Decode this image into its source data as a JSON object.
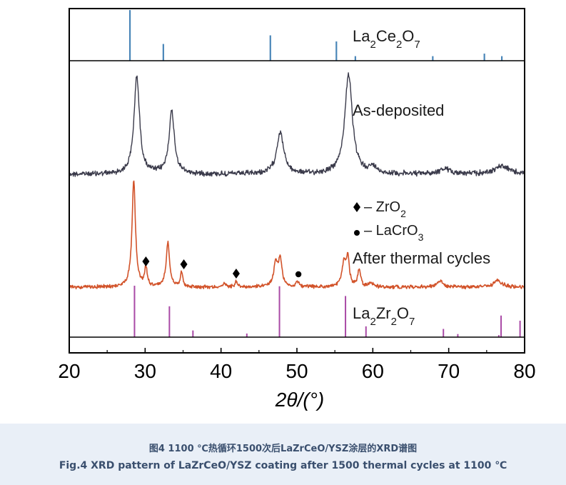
{
  "chart_data": {
    "type": "line",
    "x_range": [
      20,
      80
    ],
    "x_ticks": [
      "20",
      "30",
      "40",
      "50",
      "60",
      "70",
      "80"
    ],
    "xlabel": "2θ/(°)",
    "series": [
      {
        "name": "As-deposited",
        "color": "#3a3a4a",
        "peaks": [
          {
            "x": 28.9,
            "y": 0.98,
            "w": 0.55
          },
          {
            "x": 33.5,
            "y": 0.62,
            "w": 0.55
          },
          {
            "x": 47.8,
            "y": 0.42,
            "w": 0.7
          },
          {
            "x": 56.8,
            "y": 1.0,
            "w": 0.75
          },
          {
            "x": 60.0,
            "y": 0.06,
            "w": 0.8
          },
          {
            "x": 69.5,
            "y": 0.05,
            "w": 1.2
          },
          {
            "x": 77.0,
            "y": 0.08,
            "w": 1.5
          }
        ]
      },
      {
        "name": "After thermal cycles",
        "color": "#d2532a",
        "peaks": [
          {
            "x": 28.5,
            "y": 1.0,
            "w": 0.35
          },
          {
            "x": 30.1,
            "y": 0.18,
            "w": 0.25
          },
          {
            "x": 33.0,
            "y": 0.42,
            "w": 0.35
          },
          {
            "x": 34.8,
            "y": 0.13,
            "w": 0.25
          },
          {
            "x": 40.5,
            "y": 0.03,
            "w": 0.3
          },
          {
            "x": 42.0,
            "y": 0.05,
            "w": 0.3
          },
          {
            "x": 47.2,
            "y": 0.22,
            "w": 0.4
          },
          {
            "x": 47.8,
            "y": 0.25,
            "w": 0.35
          },
          {
            "x": 50.1,
            "y": 0.05,
            "w": 0.3
          },
          {
            "x": 56.2,
            "y": 0.22,
            "w": 0.4
          },
          {
            "x": 56.7,
            "y": 0.26,
            "w": 0.3
          },
          {
            "x": 58.2,
            "y": 0.16,
            "w": 0.3
          },
          {
            "x": 59.8,
            "y": 0.04,
            "w": 0.4
          },
          {
            "x": 68.8,
            "y": 0.06,
            "w": 0.6
          },
          {
            "x": 76.5,
            "y": 0.06,
            "w": 0.8
          }
        ]
      }
    ],
    "reference_patterns": [
      {
        "name": "La2Ce2O7",
        "label_main": "La",
        "label_parts": [
          [
            "La",
            "2"
          ],
          [
            "Ce",
            "2"
          ],
          [
            "O",
            "7"
          ]
        ],
        "color": "#4a86b8",
        "lines": [
          {
            "x": 28.0,
            "h": 1.0
          },
          {
            "x": 32.4,
            "h": 0.33
          },
          {
            "x": 46.5,
            "h": 0.5
          },
          {
            "x": 55.2,
            "h": 0.38
          },
          {
            "x": 57.7,
            "h": 0.09
          },
          {
            "x": 67.9,
            "h": 0.09
          },
          {
            "x": 74.7,
            "h": 0.14
          },
          {
            "x": 77.0,
            "h": 0.09
          }
        ]
      },
      {
        "name": "La2Zr2O7",
        "label_parts": [
          [
            "La",
            "2"
          ],
          [
            "Zr",
            "2"
          ],
          [
            "O",
            "7"
          ]
        ],
        "color": "#a94aa6",
        "lines": [
          {
            "x": 28.6,
            "h": 1.0
          },
          {
            "x": 33.2,
            "h": 0.6
          },
          {
            "x": 36.3,
            "h": 0.13
          },
          {
            "x": 43.4,
            "h": 0.07
          },
          {
            "x": 47.7,
            "h": 0.99
          },
          {
            "x": 56.4,
            "h": 0.8
          },
          {
            "x": 59.1,
            "h": 0.21
          },
          {
            "x": 69.3,
            "h": 0.16
          },
          {
            "x": 71.2,
            "h": 0.06
          },
          {
            "x": 76.6,
            "h": 0.04
          },
          {
            "x": 76.9,
            "h": 0.42
          },
          {
            "x": 79.4,
            "h": 0.32
          }
        ]
      }
    ],
    "markers": [
      {
        "symbol": "diamond",
        "x": 30.1,
        "phase": "ZrO2"
      },
      {
        "symbol": "diamond",
        "x": 35.1,
        "phase": "ZrO2"
      },
      {
        "symbol": "diamond",
        "x": 42.0,
        "phase": "ZrO2"
      },
      {
        "symbol": "dot",
        "x": 50.2,
        "phase": "LaCrO3"
      }
    ],
    "legend": [
      {
        "symbol": "diamond",
        "prefix": "– ZrO",
        "sub": "2"
      },
      {
        "symbol": "dot",
        "prefix": "– LaCrO",
        "sub": "3"
      }
    ],
    "series_labels": {
      "as_deposited": "As-deposited",
      "after": "After thermal cycles"
    }
  },
  "caption": {
    "cn": "图4 1100 ℃热循环1500次后LaZrCeO/YSZ涂层的XRD谱图",
    "en": "Fig.4 XRD pattern of LaZrCeO/YSZ coating after 1500 thermal cycles at 1100 ℃"
  }
}
